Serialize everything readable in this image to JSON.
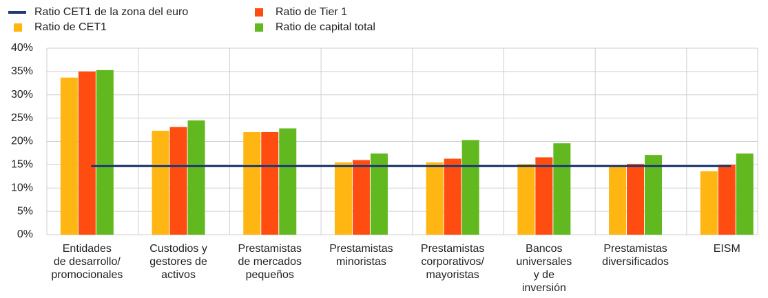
{
  "chart_data": {
    "type": "bar",
    "categories": [
      "Entidades\nde desarrollo/\npromocionales",
      "Custodios y\ngestores de\nactivos",
      "Prestamistas\nde mercados\npequeños",
      "Prestamistas\nminoristas",
      "Prestamistas\ncorporativos/\nmayoristas",
      "Bancos\nuniversales\ny de\ninversión",
      "Prestamistas\ndiversificados",
      "EISM"
    ],
    "series": [
      {
        "name": "Ratio CET1 de la zona del euro",
        "type": "line",
        "color": "#1f3a73",
        "values": [
          14.7,
          14.7,
          14.7,
          14.7,
          14.7,
          14.7,
          14.7,
          14.7
        ]
      },
      {
        "name": "Ratio de CET1",
        "color": "#ffb612",
        "values": [
          33.7,
          22.3,
          22.0,
          15.5,
          15.5,
          15.2,
          14.6,
          13.6
        ]
      },
      {
        "name": "Ratio de Tier 1",
        "color": "#ff4d12",
        "values": [
          35.0,
          23.1,
          22.0,
          16.0,
          16.3,
          16.6,
          15.2,
          15.0
        ]
      },
      {
        "name": "Ratio de capital total",
        "color": "#62b81f",
        "values": [
          35.3,
          24.5,
          22.8,
          17.4,
          20.3,
          19.6,
          17.1,
          17.4
        ]
      }
    ],
    "ylim": [
      0,
      40
    ],
    "yticks": [
      {
        "value": 0,
        "label": "0%"
      },
      {
        "value": 5,
        "label": "5%"
      },
      {
        "value": 10,
        "label": "10%"
      },
      {
        "value": 15,
        "label": "15%"
      },
      {
        "value": 20,
        "label": "20%"
      },
      {
        "value": 25,
        "label": "25%"
      },
      {
        "value": 30,
        "label": "30%"
      },
      {
        "value": 35,
        "label": "35%"
      },
      {
        "value": 40,
        "label": "40%"
      }
    ],
    "grid": true
  }
}
